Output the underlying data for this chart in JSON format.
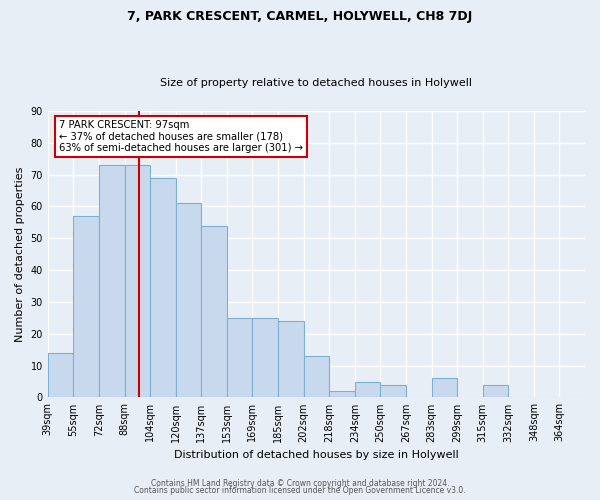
{
  "title": "7, PARK CRESCENT, CARMEL, HOLYWELL, CH8 7DJ",
  "subtitle": "Size of property relative to detached houses in Holywell",
  "xlabel": "Distribution of detached houses by size in Holywell",
  "ylabel": "Number of detached properties",
  "bin_labels": [
    "39sqm",
    "55sqm",
    "72sqm",
    "88sqm",
    "104sqm",
    "120sqm",
    "137sqm",
    "153sqm",
    "169sqm",
    "185sqm",
    "202sqm",
    "218sqm",
    "234sqm",
    "250sqm",
    "267sqm",
    "283sqm",
    "299sqm",
    "315sqm",
    "332sqm",
    "348sqm",
    "364sqm"
  ],
  "bar_heights": [
    14,
    57,
    73,
    73,
    69,
    61,
    54,
    25,
    25,
    24,
    13,
    2,
    5,
    4,
    0,
    6,
    0,
    4,
    0,
    0,
    0
  ],
  "bar_color": "#c9d9ed",
  "bar_edge_color": "#7bafd4",
  "property_line_bin": 4,
  "n_bins": 21,
  "ylim": [
    0,
    90
  ],
  "yticks": [
    0,
    10,
    20,
    30,
    40,
    50,
    60,
    70,
    80,
    90
  ],
  "annotation_text": "7 PARK CRESCENT: 97sqm\n← 37% of detached houses are smaller (178)\n63% of semi-detached houses are larger (301) →",
  "annotation_box_color": "#ffffff",
  "annotation_box_edge_color": "#cc0000",
  "footer_line1": "Contains HM Land Registry data © Crown copyright and database right 2024.",
  "footer_line2": "Contains public sector information licensed under the Open Government Licence v3.0.",
  "bg_color": "#e8eef5",
  "plot_bg_color": "#e8eef5",
  "grid_color": "#ffffff",
  "property_line_color": "#cc0000",
  "title_fontsize": 9,
  "subtitle_fontsize": 8,
  "ylabel_fontsize": 8,
  "xlabel_fontsize": 8,
  "tick_fontsize": 7,
  "footer_fontsize": 5.5
}
